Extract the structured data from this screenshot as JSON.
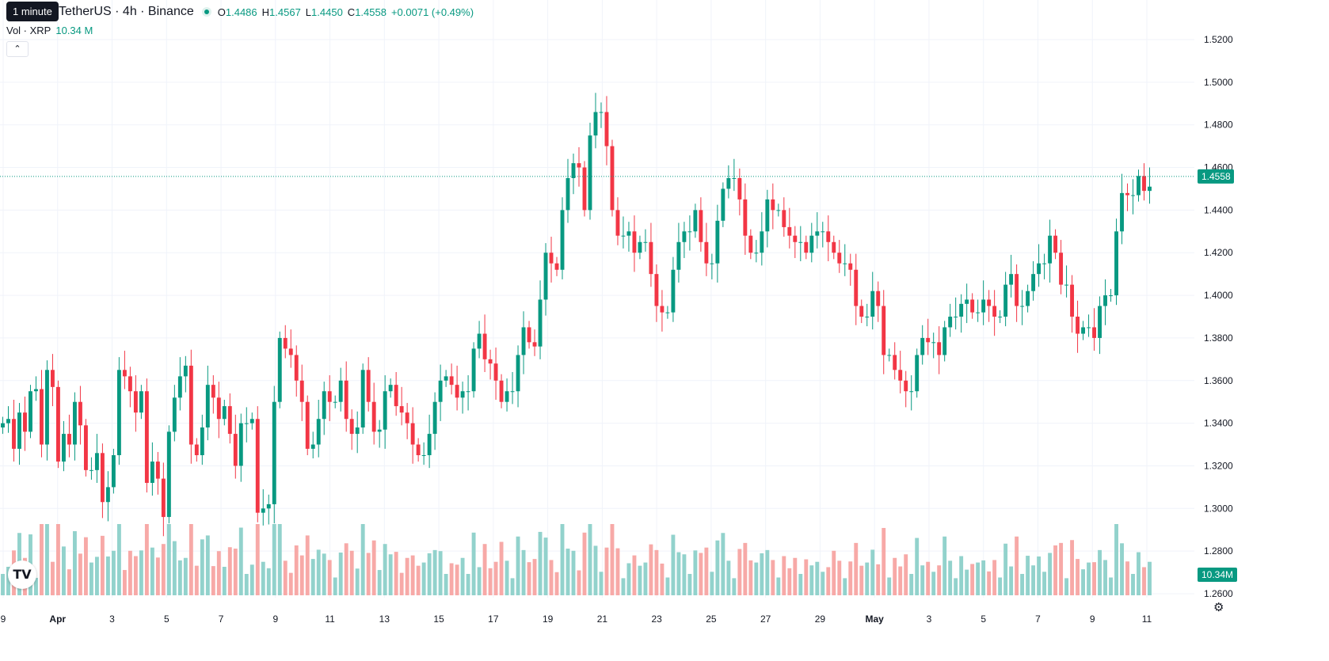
{
  "tooltip": "1 minute",
  "legend": {
    "symbol": "TetherUS · 4h · Binance",
    "open_label": "O",
    "open": "1.4486",
    "high_label": "H",
    "high": "1.4567",
    "low_label": "L",
    "low": "1.4450",
    "close_label": "C",
    "close": "1.4558",
    "change": "+0.0071 (+0.49%)"
  },
  "volume_legend": {
    "label": "Vol · XRP",
    "value": "10.34 M"
  },
  "collapse_icon": "chevron-up-icon",
  "logo_text": "TV",
  "settings_icon": "gear-icon",
  "colors": {
    "up": "#089981",
    "down": "#f23645",
    "up_vol": "#92d2cc",
    "down_vol": "#f7a9a7",
    "grid": "#f0f3fa"
  },
  "chart_data": {
    "type": "candlestick",
    "price_axis": {
      "ylim": [
        1.25,
        1.52
      ],
      "ticks": [
        "1.5200",
        "1.5000",
        "1.4800",
        "1.4600",
        "1.4400",
        "1.4200",
        "1.4000",
        "1.3800",
        "1.3600",
        "1.3400",
        "1.3200",
        "1.3000",
        "1.2800",
        "1.2600"
      ]
    },
    "time_axis": {
      "ticks": [
        "9",
        "Apr",
        "3",
        "5",
        "7",
        "9",
        "11",
        "13",
        "15",
        "17",
        "19",
        "21",
        "23",
        "25",
        "27",
        "29",
        "May",
        "3",
        "5",
        "7",
        "9",
        "11"
      ]
    },
    "last_price_label": "1.4558",
    "volume_label": "10.34M",
    "anchors": [
      [
        1.34,
        1.342,
        1.328,
        1.345
      ],
      [
        1.336,
        1.355,
        1.356,
        1.33
      ],
      [
        1.365,
        1.357,
        1.322,
        1.335
      ],
      [
        1.33,
        1.35,
        1.339,
        1.318
      ],
      [
        1.318,
        1.326,
        1.303,
        1.31
      ],
      [
        1.325,
        1.365,
        1.362,
        1.355
      ],
      [
        1.345,
        1.355,
        1.312,
        1.322
      ],
      [
        1.314,
        1.296,
        1.336,
        1.352
      ],
      [
        1.362,
        1.367,
        1.33,
        1.325
      ],
      [
        1.338,
        1.358,
        1.352,
        1.342
      ],
      [
        1.348,
        1.335,
        1.32,
        1.34
      ],
      [
        1.34,
        1.342,
        1.298,
        1.3
      ],
      [
        1.302,
        1.35,
        1.38,
        1.375
      ],
      [
        1.372,
        1.36,
        1.35,
        1.328
      ],
      [
        1.33,
        1.342,
        1.355,
        1.35
      ],
      [
        1.35,
        1.36,
        1.342,
        1.335
      ],
      [
        1.338,
        1.365,
        1.35,
        1.336
      ],
      [
        1.337,
        1.355,
        1.358,
        1.348
      ],
      [
        1.345,
        1.34,
        1.33,
        1.325
      ],
      [
        1.325,
        1.335,
        1.35,
        1.36
      ],
      [
        1.362,
        1.358,
        1.352,
        1.355
      ],
      [
        1.355,
        1.375,
        1.382,
        1.37
      ],
      [
        1.368,
        1.36,
        1.35,
        1.355
      ],
      [
        1.355,
        1.372,
        1.385,
        1.378
      ],
      [
        1.376,
        1.398,
        1.42,
        1.415
      ],
      [
        1.412,
        1.44,
        1.455,
        1.462
      ],
      [
        1.46,
        1.44,
        1.475,
        1.486
      ],
      [
        1.486,
        1.47,
        1.44,
        1.428
      ],
      [
        1.428,
        1.43,
        1.42,
        1.425
      ],
      [
        1.425,
        1.41,
        1.395,
        1.392
      ],
      [
        1.392,
        1.412,
        1.425,
        1.43
      ],
      [
        1.43,
        1.44,
        1.425,
        1.415
      ],
      [
        1.415,
        1.435,
        1.45,
        1.455
      ],
      [
        1.455,
        1.445,
        1.428,
        1.42
      ],
      [
        1.42,
        1.43,
        1.445,
        1.44
      ],
      [
        1.44,
        1.432,
        1.428,
        1.425
      ],
      [
        1.425,
        1.42,
        1.428,
        1.43
      ],
      [
        1.43,
        1.425,
        1.42,
        1.415
      ],
      [
        1.415,
        1.412,
        1.395,
        1.39
      ],
      [
        1.39,
        1.402,
        1.395,
        1.372
      ],
      [
        1.372,
        1.365,
        1.36,
        1.355
      ],
      [
        1.355,
        1.372,
        1.38,
        1.378
      ],
      [
        1.378,
        1.372,
        1.385,
        1.39
      ],
      [
        1.39,
        1.396,
        1.398,
        1.392
      ],
      [
        1.392,
        1.398,
        1.395,
        1.39
      ],
      [
        1.39,
        1.405,
        1.41,
        1.395
      ],
      [
        1.395,
        1.402,
        1.41,
        1.415
      ],
      [
        1.415,
        1.428,
        1.42,
        1.405
      ],
      [
        1.405,
        1.39,
        1.382,
        1.385
      ],
      [
        1.385,
        1.38,
        1.395,
        1.4
      ],
      [
        1.4,
        1.43,
        1.448,
        1.447
      ],
      [
        1.447,
        1.456,
        1.449,
        1.451
      ]
    ],
    "volume_pattern": [
      0.25,
      0.35,
      0.28,
      0.45,
      0.3,
      0.38,
      0.22,
      0.42,
      0.33,
      0.27,
      0.5,
      0.36,
      0.24,
      0.4,
      0.31,
      0.29,
      0.46,
      0.34,
      0.26,
      0.37
    ]
  }
}
